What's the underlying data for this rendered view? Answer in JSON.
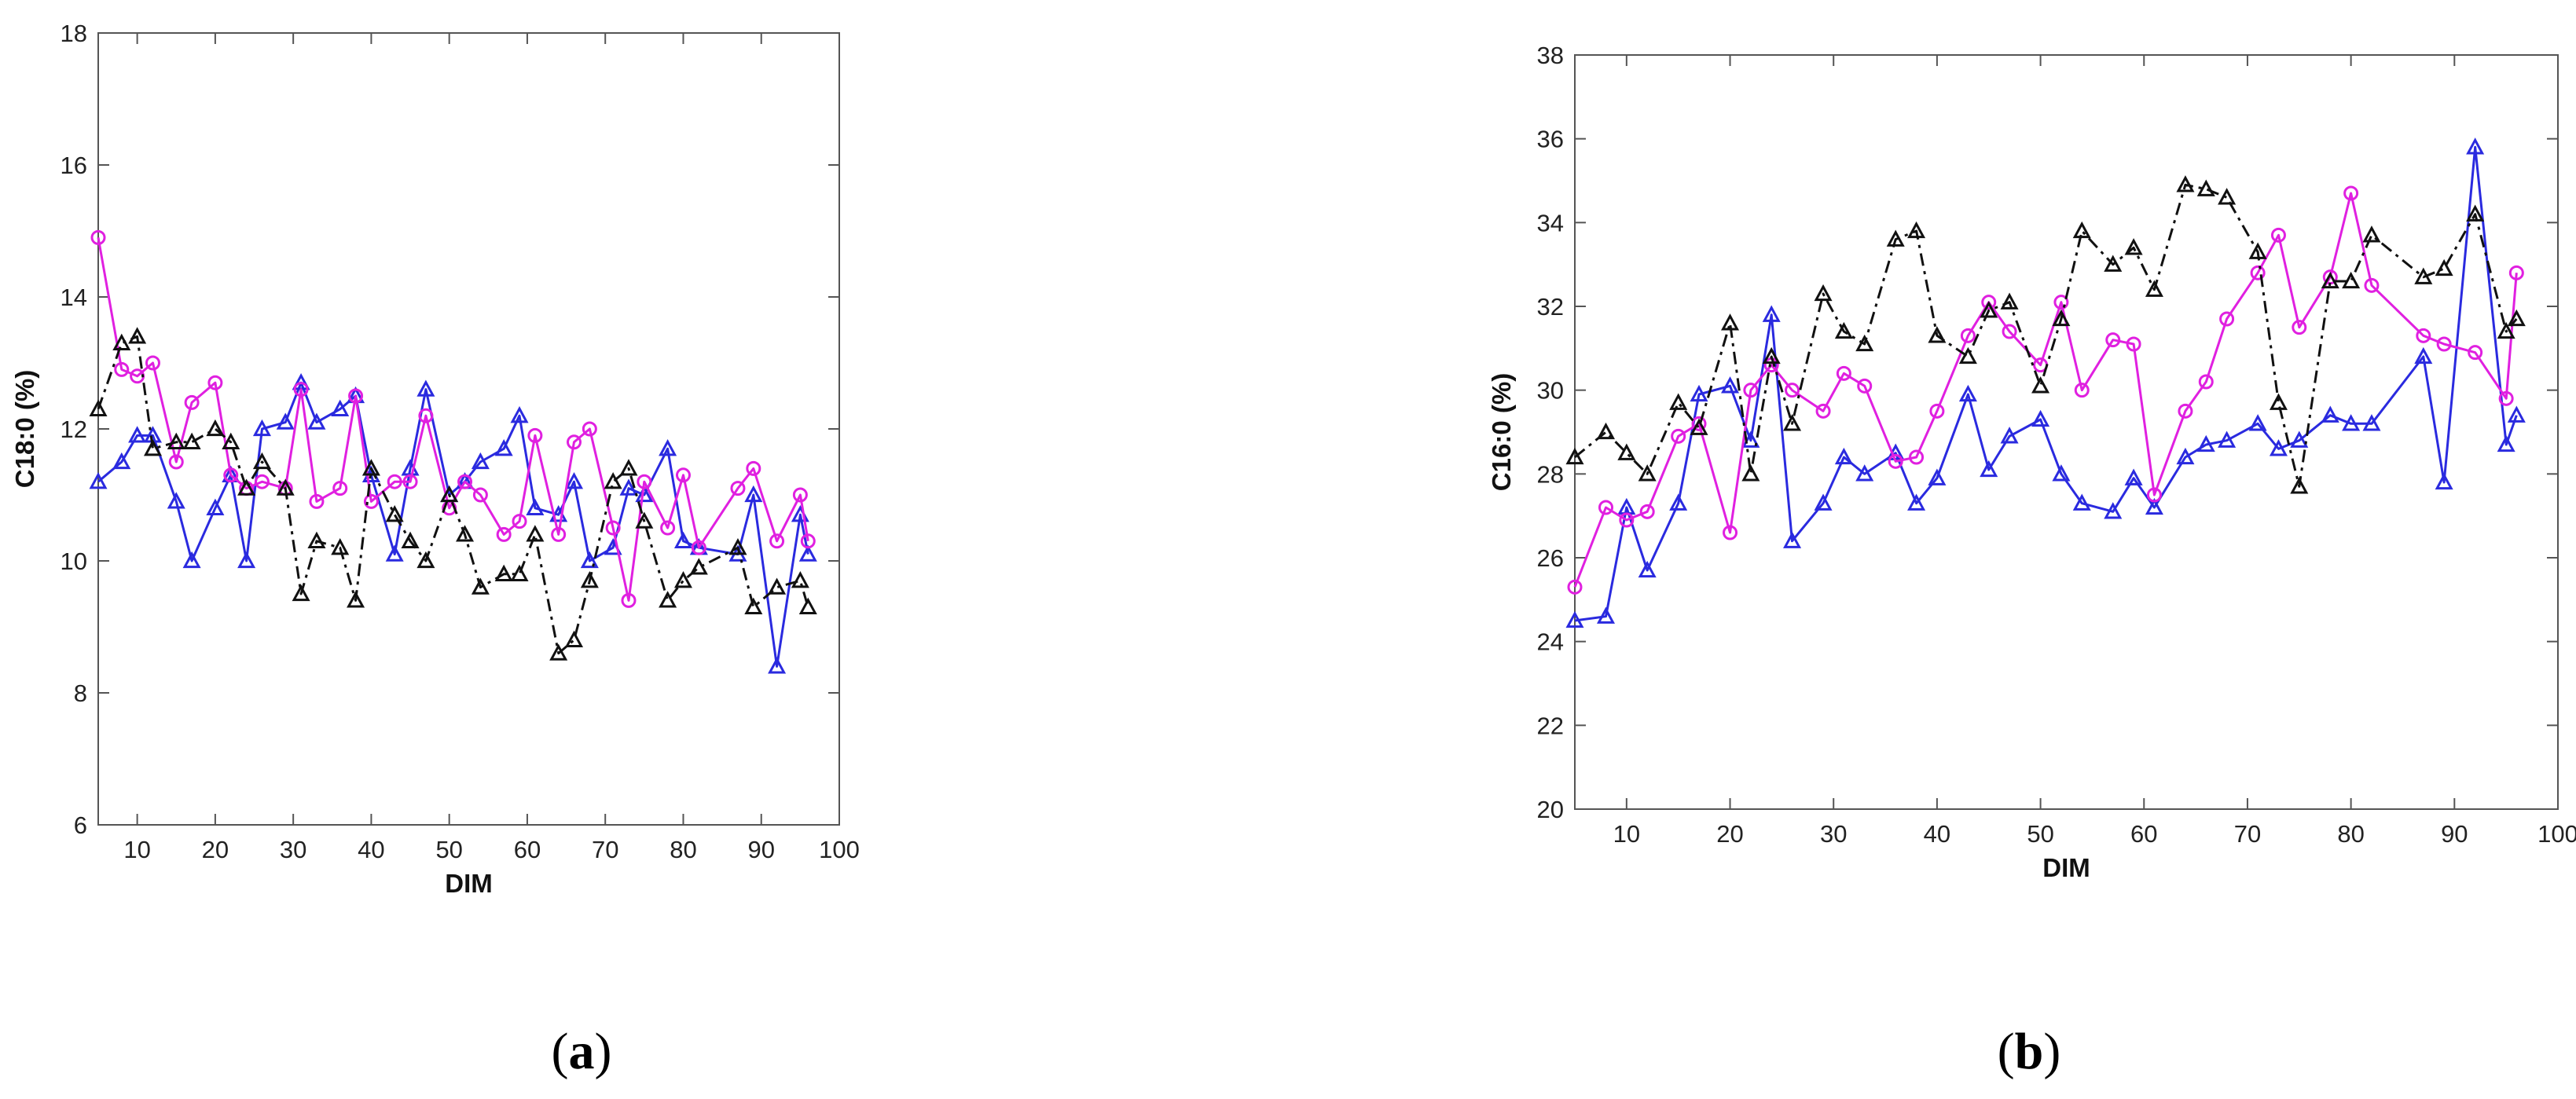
{
  "chart_data": [
    {
      "type": "line",
      "panel_label": "a",
      "xlabel": "DIM",
      "ylabel": "C18:0 (%)",
      "xlim": [
        5,
        100
      ],
      "ylim": [
        6,
        18
      ],
      "xticks": [
        10,
        20,
        30,
        40,
        50,
        60,
        70,
        80,
        90,
        100
      ],
      "yticks": [
        6,
        8,
        10,
        12,
        14,
        16,
        18
      ],
      "grid": false,
      "legend": "none",
      "series": [
        {
          "color": "#2a2adf",
          "line_style": "solid",
          "marker": "triangle",
          "points": [
            [
              5,
              11.2
            ],
            [
              8,
              11.5
            ],
            [
              10,
              11.9
            ],
            [
              12,
              11.9
            ],
            [
              15,
              10.9
            ],
            [
              17,
              10.0
            ],
            [
              20,
              10.8
            ],
            [
              22,
              11.3
            ],
            [
              24,
              10.0
            ],
            [
              26,
              12.0
            ],
            [
              29,
              12.1
            ],
            [
              31,
              12.7
            ],
            [
              33,
              12.1
            ],
            [
              36,
              12.3
            ],
            [
              38,
              12.5
            ],
            [
              40,
              11.3
            ],
            [
              43,
              10.1
            ],
            [
              45,
              11.4
            ],
            [
              47,
              12.6
            ],
            [
              50,
              11.0
            ],
            [
              52,
              11.2
            ],
            [
              54,
              11.5
            ],
            [
              57,
              11.7
            ],
            [
              59,
              12.2
            ],
            [
              61,
              10.8
            ],
            [
              64,
              10.7
            ],
            [
              66,
              11.2
            ],
            [
              68,
              10.0
            ],
            [
              71,
              10.2
            ],
            [
              73,
              11.1
            ],
            [
              75,
              11.0
            ],
            [
              78,
              11.7
            ],
            [
              80,
              10.3
            ],
            [
              82,
              10.2
            ],
            [
              87,
              10.1
            ],
            [
              89,
              11.0
            ],
            [
              92,
              8.4
            ],
            [
              95,
              10.7
            ],
            [
              96,
              10.1
            ]
          ]
        },
        {
          "color": "#e020e0",
          "line_style": "solid",
          "marker": "circle",
          "points": [
            [
              5,
              14.9
            ],
            [
              8,
              12.9
            ],
            [
              10,
              12.8
            ],
            [
              12,
              13.0
            ],
            [
              15,
              11.5
            ],
            [
              17,
              12.4
            ],
            [
              20,
              12.7
            ],
            [
              22,
              11.3
            ],
            [
              24,
              11.1
            ],
            [
              26,
              11.2
            ],
            [
              29,
              11.1
            ],
            [
              31,
              12.6
            ],
            [
              33,
              10.9
            ],
            [
              36,
              11.1
            ],
            [
              38,
              12.5
            ],
            [
              40,
              10.9
            ],
            [
              43,
              11.2
            ],
            [
              45,
              11.2
            ],
            [
              47,
              12.2
            ],
            [
              50,
              10.8
            ],
            [
              52,
              11.2
            ],
            [
              54,
              11.0
            ],
            [
              57,
              10.4
            ],
            [
              59,
              10.6
            ],
            [
              61,
              11.9
            ],
            [
              64,
              10.4
            ],
            [
              66,
              11.8
            ],
            [
              68,
              12.0
            ],
            [
              71,
              10.5
            ],
            [
              73,
              9.4
            ],
            [
              75,
              11.2
            ],
            [
              78,
              10.5
            ],
            [
              80,
              11.3
            ],
            [
              82,
              10.2
            ],
            [
              87,
              11.1
            ],
            [
              89,
              11.4
            ],
            [
              92,
              10.3
            ],
            [
              95,
              11.0
            ],
            [
              96,
              10.3
            ]
          ]
        },
        {
          "color": "#111111",
          "line_style": "dashdot",
          "marker": "triangle",
          "points": [
            [
              5,
              12.3
            ],
            [
              8,
              13.3
            ],
            [
              10,
              13.4
            ],
            [
              12,
              11.7
            ],
            [
              15,
              11.8
            ],
            [
              17,
              11.8
            ],
            [
              20,
              12.0
            ],
            [
              22,
              11.8
            ],
            [
              24,
              11.1
            ],
            [
              26,
              11.5
            ],
            [
              29,
              11.1
            ],
            [
              31,
              9.5
            ],
            [
              33,
              10.3
            ],
            [
              36,
              10.2
            ],
            [
              38,
              9.4
            ],
            [
              40,
              11.4
            ],
            [
              43,
              10.7
            ],
            [
              45,
              10.3
            ],
            [
              47,
              10.0
            ],
            [
              50,
              11.0
            ],
            [
              52,
              10.4
            ],
            [
              54,
              9.6
            ],
            [
              57,
              9.8
            ],
            [
              59,
              9.8
            ],
            [
              61,
              10.4
            ],
            [
              64,
              8.6
            ],
            [
              66,
              8.8
            ],
            [
              68,
              9.7
            ],
            [
              71,
              11.2
            ],
            [
              73,
              11.4
            ],
            [
              75,
              10.6
            ],
            [
              78,
              9.4
            ],
            [
              80,
              9.7
            ],
            [
              82,
              9.9
            ],
            [
              87,
              10.2
            ],
            [
              89,
              9.3
            ],
            [
              92,
              9.6
            ],
            [
              95,
              9.7
            ],
            [
              96,
              9.3
            ]
          ]
        }
      ]
    },
    {
      "type": "line",
      "panel_label": "b",
      "xlabel": "DIM",
      "ylabel": "C16:0 (%)",
      "xlim": [
        5,
        100
      ],
      "ylim": [
        20,
        38
      ],
      "xticks": [
        10,
        20,
        30,
        40,
        50,
        60,
        70,
        80,
        90,
        100
      ],
      "yticks": [
        20,
        22,
        24,
        26,
        28,
        30,
        32,
        34,
        36,
        38
      ],
      "grid": false,
      "legend": "none",
      "series": [
        {
          "color": "#2a2adf",
          "line_style": "solid",
          "marker": "triangle",
          "points": [
            [
              5,
              24.5
            ],
            [
              8,
              24.6
            ],
            [
              10,
              27.2
            ],
            [
              12,
              25.7
            ],
            [
              15,
              27.3
            ],
            [
              17,
              29.9
            ],
            [
              20,
              30.1
            ],
            [
              22,
              28.8
            ],
            [
              24,
              31.8
            ],
            [
              26,
              26.4
            ],
            [
              29,
              27.3
            ],
            [
              31,
              28.4
            ],
            [
              33,
              28.0
            ],
            [
              36,
              28.5
            ],
            [
              38,
              27.3
            ],
            [
              40,
              27.9
            ],
            [
              43,
              29.9
            ],
            [
              45,
              28.1
            ],
            [
              47,
              28.9
            ],
            [
              50,
              29.3
            ],
            [
              52,
              28.0
            ],
            [
              54,
              27.3
            ],
            [
              57,
              27.1
            ],
            [
              59,
              27.9
            ],
            [
              61,
              27.2
            ],
            [
              64,
              28.4
            ],
            [
              66,
              28.7
            ],
            [
              68,
              28.8
            ],
            [
              71,
              29.2
            ],
            [
              73,
              28.6
            ],
            [
              75,
              28.8
            ],
            [
              78,
              29.4
            ],
            [
              80,
              29.2
            ],
            [
              82,
              29.2
            ],
            [
              87,
              30.8
            ],
            [
              89,
              27.8
            ],
            [
              92,
              35.8
            ],
            [
              95,
              28.7
            ],
            [
              96,
              29.4
            ]
          ]
        },
        {
          "color": "#e020e0",
          "line_style": "solid",
          "marker": "circle",
          "points": [
            [
              5,
              25.3
            ],
            [
              8,
              27.2
            ],
            [
              10,
              26.9
            ],
            [
              12,
              27.1
            ],
            [
              15,
              28.9
            ],
            [
              17,
              29.2
            ],
            [
              20,
              26.6
            ],
            [
              22,
              30.0
            ],
            [
              24,
              30.6
            ],
            [
              26,
              30.0
            ],
            [
              29,
              29.5
            ],
            [
              31,
              30.4
            ],
            [
              33,
              30.1
            ],
            [
              36,
              28.3
            ],
            [
              38,
              28.4
            ],
            [
              40,
              29.5
            ],
            [
              43,
              31.3
            ],
            [
              45,
              32.1
            ],
            [
              47,
              31.4
            ],
            [
              50,
              30.6
            ],
            [
              52,
              32.1
            ],
            [
              54,
              30.0
            ],
            [
              57,
              31.2
            ],
            [
              59,
              31.1
            ],
            [
              61,
              27.5
            ],
            [
              64,
              29.5
            ],
            [
              66,
              30.2
            ],
            [
              68,
              31.7
            ],
            [
              71,
              32.8
            ],
            [
              73,
              33.7
            ],
            [
              75,
              31.5
            ],
            [
              78,
              32.7
            ],
            [
              80,
              34.7
            ],
            [
              82,
              32.5
            ],
            [
              87,
              31.3
            ],
            [
              89,
              31.1
            ],
            [
              92,
              30.9
            ],
            [
              95,
              29.8
            ],
            [
              96,
              32.8
            ]
          ]
        },
        {
          "color": "#111111",
          "line_style": "dashdot",
          "marker": "triangle",
          "points": [
            [
              5,
              28.4
            ],
            [
              8,
              29.0
            ],
            [
              10,
              28.5
            ],
            [
              12,
              28.0
            ],
            [
              15,
              29.7
            ],
            [
              17,
              29.1
            ],
            [
              20,
              31.6
            ],
            [
              22,
              28.0
            ],
            [
              24,
              30.8
            ],
            [
              26,
              29.2
            ],
            [
              29,
              32.3
            ],
            [
              31,
              31.4
            ],
            [
              33,
              31.1
            ],
            [
              36,
              33.6
            ],
            [
              38,
              33.8
            ],
            [
              40,
              31.3
            ],
            [
              43,
              30.8
            ],
            [
              45,
              31.9
            ],
            [
              47,
              32.1
            ],
            [
              50,
              30.1
            ],
            [
              52,
              31.7
            ],
            [
              54,
              33.8
            ],
            [
              57,
              33.0
            ],
            [
              59,
              33.4
            ],
            [
              61,
              32.4
            ],
            [
              64,
              34.9
            ],
            [
              66,
              34.8
            ],
            [
              68,
              34.6
            ],
            [
              71,
              33.3
            ],
            [
              73,
              29.7
            ],
            [
              75,
              27.7
            ],
            [
              78,
              32.6
            ],
            [
              80,
              32.6
            ],
            [
              82,
              33.7
            ],
            [
              87,
              32.7
            ],
            [
              89,
              32.9
            ],
            [
              92,
              34.2
            ],
            [
              95,
              31.4
            ],
            [
              96,
              31.7
            ]
          ]
        }
      ]
    }
  ]
}
